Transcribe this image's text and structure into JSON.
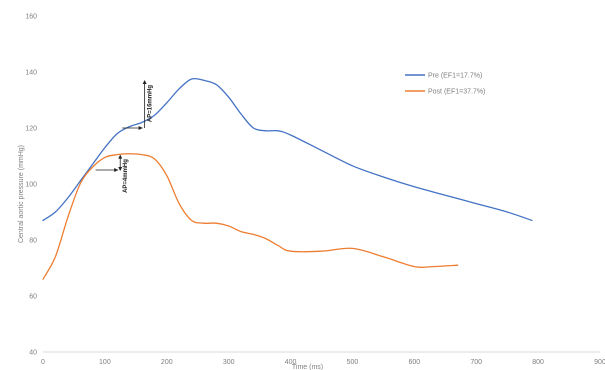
{
  "chart_data": {
    "type": "line",
    "title": "",
    "xlabel": "Time (ms)",
    "ylabel": "Central aortic pressure (mmHg)",
    "xlim": [
      0,
      900
    ],
    "ylim": [
      40,
      160
    ],
    "xticks": [
      0,
      100,
      200,
      300,
      400,
      500,
      600,
      700,
      800,
      900
    ],
    "yticks": [
      40,
      60,
      80,
      100,
      120,
      140,
      160
    ],
    "grid": false,
    "legend_position": "right",
    "series": [
      {
        "name": "Pre (EF1=17.7%)",
        "color": "#4472c4",
        "x": [
          0,
          20,
          40,
          60,
          80,
          100,
          120,
          140,
          160,
          180,
          200,
          220,
          240,
          260,
          280,
          300,
          320,
          340,
          360,
          380,
          400,
          450,
          500,
          550,
          600,
          650,
          700,
          750,
          790
        ],
        "y": [
          87,
          90,
          95,
          101,
          107,
          113,
          118,
          120.5,
          122,
          124.5,
          129,
          134,
          137.5,
          137,
          135.5,
          131,
          125,
          120,
          119,
          119,
          117.5,
          112,
          106.5,
          102.5,
          99,
          96,
          93,
          90,
          87
        ]
      },
      {
        "name": "Post (EF1=37.7%)",
        "color": "#ed7d31",
        "x": [
          0,
          20,
          40,
          60,
          80,
          100,
          120,
          140,
          160,
          180,
          200,
          220,
          240,
          260,
          280,
          300,
          320,
          340,
          360,
          380,
          400,
          450,
          500,
          550,
          600,
          630,
          670
        ],
        "y": [
          66,
          74,
          88,
          100,
          106,
          109.5,
          110.5,
          110.8,
          110.5,
          109,
          103,
          93,
          87,
          86,
          86,
          85,
          83,
          82,
          80.5,
          78,
          76,
          76,
          77,
          74,
          70.5,
          70.5,
          71
        ]
      }
    ],
    "annotations": [
      {
        "text": "AP=16mmHg",
        "x": 245,
        "y_from": 120,
        "y_to": 137.5
      },
      {
        "text": "AP=4mmHg",
        "x": 128,
        "y_from": 105,
        "y_to": 110.5
      }
    ]
  }
}
